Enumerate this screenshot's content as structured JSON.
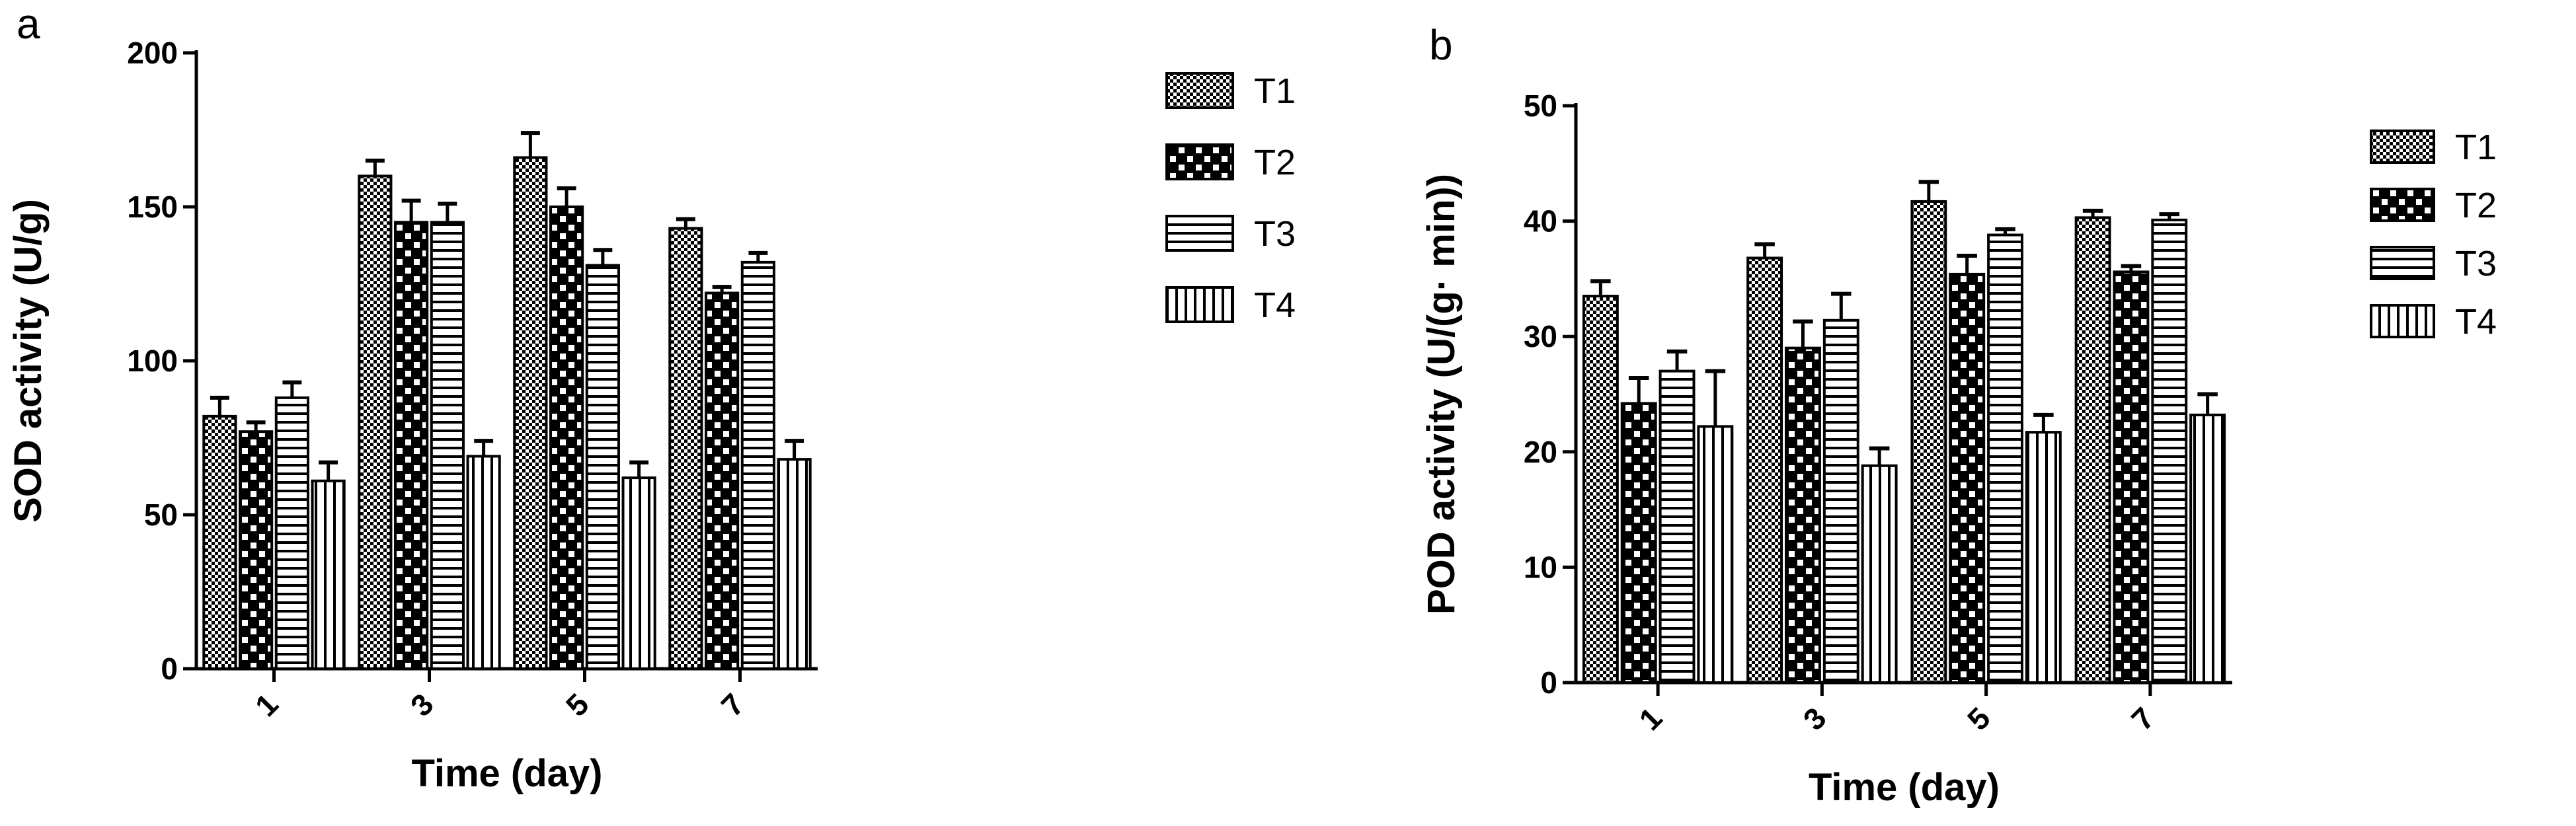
{
  "chart_data": [
    {
      "type": "bar",
      "panel_label": "a",
      "categories": [
        "1",
        "3",
        "5",
        "7"
      ],
      "xlabel": "Time (day)",
      "ylabel": "SOD activity (U/g)",
      "ylim": [
        0,
        200
      ],
      "yticks": [
        "0",
        "50",
        "100",
        "150",
        "200"
      ],
      "grid": false,
      "legend_position": "right",
      "series": [
        {
          "name": "T1",
          "pattern": "checker-fine",
          "values": [
            82,
            160,
            166,
            143
          ],
          "errors": [
            6,
            5,
            8,
            3
          ]
        },
        {
          "name": "T2",
          "pattern": "checker-large",
          "values": [
            77,
            145,
            150,
            122
          ],
          "errors": [
            3,
            7,
            6,
            2
          ]
        },
        {
          "name": "T3",
          "pattern": "horizontal-lines",
          "values": [
            88,
            145,
            131,
            132
          ],
          "errors": [
            5,
            6,
            5,
            3
          ]
        },
        {
          "name": "T4",
          "pattern": "vertical-lines",
          "values": [
            61,
            69,
            62,
            68
          ],
          "errors": [
            6,
            5,
            5,
            6
          ]
        }
      ]
    },
    {
      "type": "bar",
      "panel_label": "b",
      "categories": [
        "1",
        "3",
        "5",
        "7"
      ],
      "xlabel": "Time (day)",
      "ylabel": "POD activity (U/(g· min))",
      "ylim": [
        0,
        50
      ],
      "yticks": [
        "0",
        "10",
        "20",
        "30",
        "40",
        "50"
      ],
      "grid": false,
      "legend_position": "right",
      "series": [
        {
          "name": "T1",
          "pattern": "checker-fine",
          "values": [
            33.5,
            36.8,
            41.7,
            40.3
          ],
          "errors": [
            1.3,
            1.2,
            1.7,
            0.6
          ]
        },
        {
          "name": "T2",
          "pattern": "checker-large",
          "values": [
            24.2,
            29.0,
            35.4,
            35.6
          ],
          "errors": [
            2.2,
            2.3,
            1.6,
            0.5
          ]
        },
        {
          "name": "T3",
          "pattern": "horizontal-lines",
          "values": [
            27.0,
            31.4,
            38.8,
            40.1
          ],
          "errors": [
            1.7,
            2.3,
            0.5,
            0.5
          ]
        },
        {
          "name": "T4",
          "pattern": "vertical-lines",
          "values": [
            22.2,
            18.8,
            21.7,
            23.2
          ],
          "errors": [
            4.8,
            1.5,
            1.5,
            1.8
          ]
        }
      ]
    }
  ]
}
